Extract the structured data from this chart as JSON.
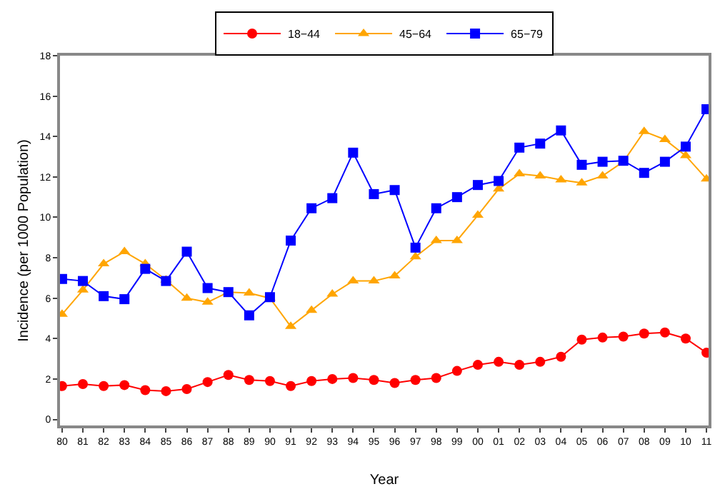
{
  "chart_data": {
    "type": "line",
    "xlabel": "Year",
    "ylabel": "Incidence (per 1000 Population)",
    "categories": [
      "80",
      "81",
      "82",
      "83",
      "84",
      "85",
      "86",
      "87",
      "88",
      "89",
      "90",
      "91",
      "92",
      "93",
      "94",
      "95",
      "96",
      "97",
      "98",
      "99",
      "00",
      "01",
      "02",
      "03",
      "04",
      "05",
      "06",
      "07",
      "08",
      "09",
      "10",
      "11"
    ],
    "series": [
      {
        "name": "18−44",
        "color": "#ff0000",
        "marker": "circle",
        "values": [
          1.65,
          1.75,
          1.65,
          1.7,
          1.45,
          1.4,
          1.5,
          1.85,
          2.2,
          1.95,
          1.9,
          1.65,
          1.9,
          2.0,
          2.05,
          1.95,
          1.8,
          1.95,
          2.05,
          2.4,
          2.7,
          2.85,
          2.7,
          2.85,
          3.1,
          3.95,
          4.05,
          4.1,
          4.25,
          4.3,
          4.0,
          3.3
        ]
      },
      {
        "name": "45−64",
        "color": "#ffa500",
        "marker": "triangle",
        "values": [
          5.2,
          6.4,
          7.7,
          8.3,
          7.7,
          6.9,
          6.0,
          5.8,
          6.3,
          6.25,
          6.0,
          4.6,
          5.4,
          6.2,
          6.85,
          6.85,
          7.1,
          8.05,
          8.85,
          8.85,
          10.1,
          11.4,
          12.15,
          12.05,
          11.85,
          11.7,
          12.05,
          12.75,
          14.25,
          13.85,
          13.05,
          11.9
        ]
      },
      {
        "name": "65−79",
        "color": "#0000ff",
        "marker": "square",
        "values": [
          6.95,
          6.85,
          6.1,
          5.95,
          7.45,
          6.85,
          8.3,
          6.5,
          6.3,
          5.15,
          6.05,
          8.85,
          10.45,
          10.95,
          13.2,
          11.15,
          11.35,
          8.5,
          10.45,
          11.0,
          11.6,
          11.8,
          13.45,
          13.65,
          14.3,
          12.6,
          12.75,
          12.8,
          12.2,
          12.75,
          13.5,
          15.35
        ]
      }
    ],
    "ylim": [
      -0.3,
      18
    ],
    "yticks": [
      0,
      2,
      4,
      6,
      8,
      10,
      12,
      14,
      16,
      18
    ],
    "grid": false,
    "legend": "top",
    "line_style": "solid"
  }
}
